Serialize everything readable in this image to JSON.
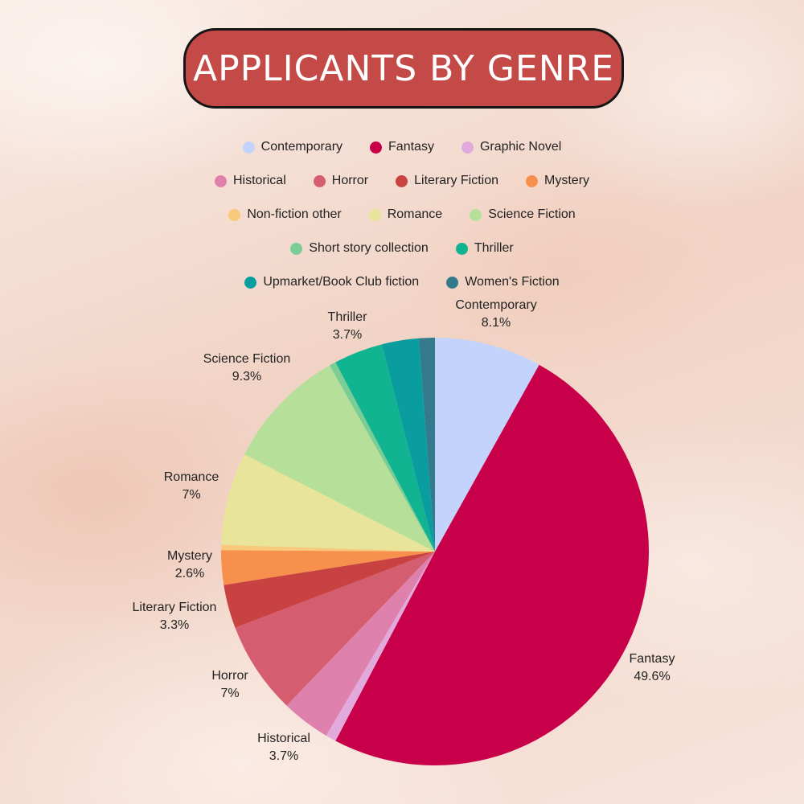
{
  "chart_data": {
    "type": "pie",
    "title": "APPLICANTS BY GENRE",
    "legend_position": "top",
    "slices": [
      {
        "name": "Contemporary",
        "value": 8.1,
        "label": "8.1%",
        "color": "#c3d3fb",
        "show_label": true
      },
      {
        "name": "Fantasy",
        "value": 49.6,
        "label": "49.6%",
        "color": "#c8004a",
        "show_label": true
      },
      {
        "name": "Graphic Novel",
        "value": 0.8,
        "label": "",
        "color": "#e1a9dc",
        "show_label": false
      },
      {
        "name": "Historical",
        "value": 3.7,
        "label": "3.7%",
        "color": "#de82ad",
        "show_label": true
      },
      {
        "name": "Horror",
        "value": 7,
        "label": "7%",
        "color": "#d45d70",
        "show_label": true
      },
      {
        "name": "Literary Fiction",
        "value": 3.3,
        "label": "3.3%",
        "color": "#c94242",
        "show_label": true
      },
      {
        "name": "Mystery",
        "value": 2.6,
        "label": "2.6%",
        "color": "#f6904c",
        "show_label": true
      },
      {
        "name": "Non-fiction other",
        "value": 0.4,
        "label": "",
        "color": "#f8c97a",
        "show_label": false
      },
      {
        "name": "Romance",
        "value": 7,
        "label": "7%",
        "color": "#e8e59a",
        "show_label": true
      },
      {
        "name": "Science Fiction",
        "value": 9.3,
        "label": "9.3%",
        "color": "#b6e09a",
        "show_label": true
      },
      {
        "name": "Short story collection",
        "value": 0.5,
        "label": "",
        "color": "#79cd95",
        "show_label": false
      },
      {
        "name": "Thriller",
        "value": 3.7,
        "label": "3.7%",
        "color": "#11b491",
        "show_label": true
      },
      {
        "name": "Upmarket/Book Club fiction",
        "value": 2.8,
        "label": "",
        "color": "#0a9da0",
        "show_label": false
      },
      {
        "name": "Women's Fiction",
        "value": 1.2,
        "label": "",
        "color": "#327a8c",
        "show_label": false
      }
    ]
  }
}
